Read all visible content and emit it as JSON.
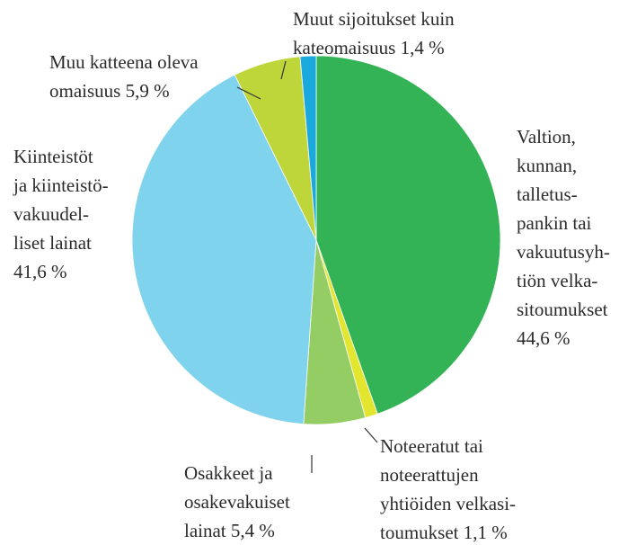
{
  "chart_data": {
    "type": "pie",
    "categories": [
      [
        "Valtion,",
        "kunnan,",
        "talletus-",
        "pankin tai",
        "vakuutusyh-",
        "tiön velka-",
        "sitoumukset"
      ],
      [
        "Noteeratut tai",
        "noteerattujen",
        "yhtiöiden velkasi-",
        "toumukset"
      ],
      [
        "Osakkeet ja",
        "osakevakuiset",
        "lainat"
      ],
      [
        "Kiinteistöt",
        "ja kiinteistö-",
        "vakuudel-",
        "liset lainat"
      ],
      [
        "Muu katteena oleva",
        "omaisuus"
      ],
      [
        "Muut sijoitukset kuin",
        "kateomaisuus"
      ]
    ],
    "values": [
      44.6,
      1.1,
      5.4,
      41.6,
      5.9,
      1.4
    ],
    "value_labels": [
      "44,6 %",
      "1,1 %",
      "5,4 %",
      "41,6 %",
      "5,9 %",
      "1,4 %"
    ],
    "colors": [
      "#34b356",
      "#e3e62e",
      "#94cd63",
      "#7fd3ec",
      "#bfd63a",
      "#1aa9dc"
    ]
  }
}
